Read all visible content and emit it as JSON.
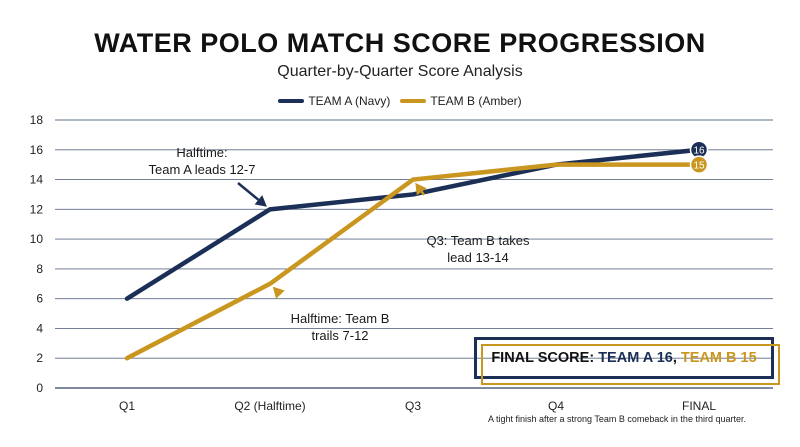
{
  "title": "WATER POLO MATCH SCORE PROGRESSION",
  "subtitle": "Quarter-by-Quarter Score Analysis",
  "colors": {
    "team_a": "#1c2f57",
    "team_b": "#c9961f",
    "grid": "#1c2f57"
  },
  "chart_data": {
    "type": "line",
    "title": "WATER POLO MATCH SCORE PROGRESSION",
    "subtitle": "Quarter-by-Quarter Score Analysis",
    "categories": [
      "Q1",
      "Q2 (Halftime)",
      "Q3",
      "Q4",
      "FINAL"
    ],
    "series": [
      {
        "name": "TEAM A (Navy)",
        "values": [
          6,
          12,
          13,
          15,
          16
        ]
      },
      {
        "name": "TEAM B (Amber)",
        "values": [
          2,
          7,
          14,
          15,
          15
        ]
      }
    ],
    "ylim": [
      0,
      18
    ],
    "yticks": [
      0,
      2,
      4,
      6,
      8,
      10,
      12,
      14,
      16,
      18
    ],
    "xlabel": "",
    "ylabel": "",
    "grid": true,
    "legend": "top-center",
    "end_labels": [
      "16",
      "15"
    ],
    "annotations": [
      {
        "lines": [
          "Halftime:",
          "Team A leads 12-7"
        ],
        "series": 0,
        "point": 1
      },
      {
        "lines": [
          "Q3: Team B takes",
          "lead 13-14"
        ],
        "series": 1,
        "point": 2
      },
      {
        "lines": [
          "Halftime: Team B",
          "trails 7-12"
        ],
        "series": 1,
        "point": 1
      }
    ]
  },
  "final_score": {
    "prefix": "FINAL SCORE: ",
    "team_a": "TEAM A 16",
    "sep": ", ",
    "team_b": "TEAM B 15"
  },
  "footnote": "A tight finish after a strong Team B comeback in the third quarter."
}
